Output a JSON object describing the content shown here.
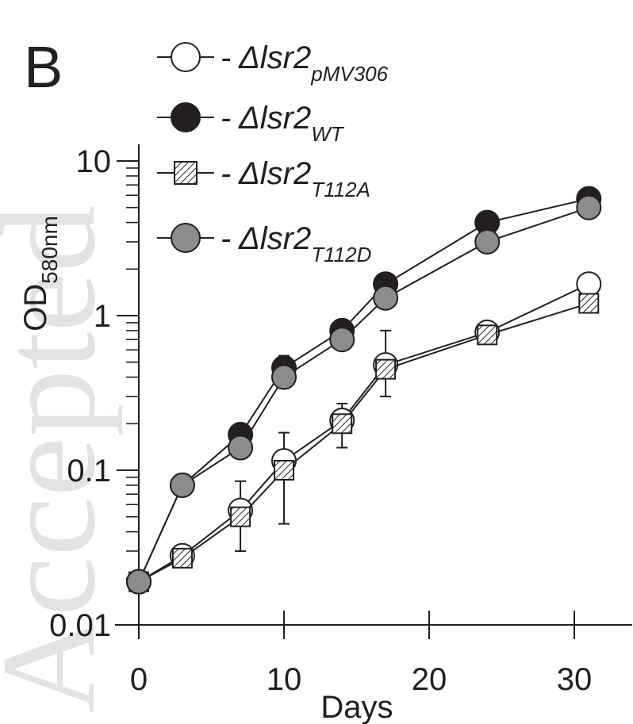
{
  "watermark_text": "Accepted",
  "chart_data": {
    "type": "line",
    "panel_label": "B",
    "xlabel": "Days",
    "ylabel_main": "OD",
    "ylabel_sub": "580nm",
    "xlim": [
      0,
      33
    ],
    "ylim": [
      0.01,
      10
    ],
    "y_scale": "log",
    "grid": false,
    "x_ticks": [
      0,
      10,
      20,
      30
    ],
    "x_tick_labels": [
      "0",
      "10",
      "20",
      "30"
    ],
    "y_ticks": [
      0.01,
      0.1,
      1,
      10
    ],
    "y_tick_labels": [
      "0.01",
      "0.1",
      "1",
      "10"
    ],
    "legend_placement": "top-left",
    "series": [
      {
        "name_prefix": "- Δ",
        "name_main": "lsr2",
        "name_sub": "pMV306",
        "marker": "circle",
        "fill": "#ffffff",
        "x": [
          0,
          3,
          7,
          10,
          14,
          17,
          24,
          31
        ],
        "y": [
          0.019,
          0.028,
          0.055,
          0.115,
          0.21,
          0.48,
          0.78,
          1.6
        ],
        "err_low": [
          0.0165,
          null,
          0.03,
          0.045,
          0.14,
          0.3,
          null,
          null
        ],
        "err_high": [
          0.0215,
          null,
          0.085,
          0.175,
          0.27,
          0.8,
          null,
          null
        ]
      },
      {
        "name_prefix": "- Δ",
        "name_main": "lsr2",
        "name_sub": "WT",
        "marker": "circle",
        "fill": "#231f20",
        "x": [
          0,
          3,
          7,
          10,
          14,
          17,
          24,
          31
        ],
        "y": [
          0.019,
          0.08,
          0.17,
          0.46,
          0.8,
          1.6,
          4.0,
          5.7
        ],
        "err_low": [
          null,
          null,
          null,
          0.38,
          null,
          null,
          null,
          null
        ],
        "err_high": [
          null,
          null,
          null,
          0.55,
          null,
          null,
          null,
          null
        ]
      },
      {
        "name_prefix": "- Δ",
        "name_main": "lsr2",
        "name_sub": "T112A",
        "marker": "square-hatched",
        "fill": "#ffffff",
        "x": [
          0,
          3,
          7,
          10,
          14,
          17,
          24,
          31
        ],
        "y": [
          0.019,
          0.027,
          0.05,
          0.1,
          0.2,
          0.45,
          0.75,
          1.2
        ],
        "err_low": [
          null,
          null,
          null,
          null,
          null,
          null,
          null,
          null
        ],
        "err_high": [
          null,
          null,
          null,
          null,
          null,
          null,
          null,
          null
        ]
      },
      {
        "name_prefix": "- Δ",
        "name_main": "lsr2",
        "name_sub": "T112D",
        "marker": "circle",
        "fill": "#8c8c8e",
        "x": [
          0,
          3,
          7,
          10,
          14,
          17,
          24,
          31
        ],
        "y": [
          0.019,
          0.08,
          0.14,
          0.4,
          0.7,
          1.3,
          3.0,
          5.0
        ],
        "err_low": [
          null,
          null,
          null,
          null,
          null,
          null,
          null,
          null
        ],
        "err_high": [
          null,
          null,
          null,
          null,
          null,
          null,
          null,
          null
        ]
      }
    ]
  }
}
